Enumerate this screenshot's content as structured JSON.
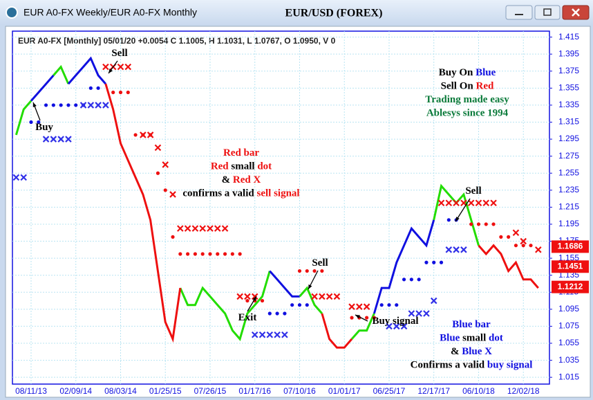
{
  "window_title": "EUR A0-FX Weekly/EUR A0-FX Monthly",
  "chart_data": {
    "type": "line",
    "title": "EUR/USD (FOREX)",
    "info": "EUR A0-FX [Monthly] 05/01/20 +0.0054 C 1.1005, H 1.1031, L 1.0767, O 1.0950, V 0",
    "categories": [
      null,
      null,
      "08/11/13",
      null,
      null,
      null,
      null,
      null,
      "02/09/14",
      null,
      null,
      null,
      null,
      null,
      "08/03/14",
      null,
      null,
      null,
      null,
      null,
      "01/25/15",
      null,
      null,
      null,
      null,
      null,
      "07/26/15",
      null,
      null,
      null,
      null,
      null,
      "01/17/16",
      null,
      null,
      null,
      null,
      null,
      "07/10/16",
      null,
      null,
      null,
      null,
      null,
      "01/01/17",
      null,
      null,
      null,
      null,
      null,
      "06/25/17",
      null,
      null,
      null,
      null,
      null,
      "12/17/17",
      null,
      null,
      null,
      null,
      null,
      "06/10/18",
      null,
      null,
      null,
      null,
      null,
      "12/02/18",
      null,
      null,
      null
    ],
    "series": [
      {
        "color": "#22dd00",
        "marker": "line",
        "values": [
          1.3,
          1.33,
          1.34,
          null,
          null,
          1.37,
          1.38,
          1.36,
          null,
          null,
          null,
          null,
          null,
          null,
          null,
          null,
          null,
          null,
          null,
          null,
          null,
          null,
          1.12,
          1.1,
          1.1,
          1.12,
          1.11,
          1.1,
          1.09,
          1.07,
          1.06,
          1.09,
          1.1,
          1.11,
          1.14,
          null,
          null,
          null,
          1.11,
          1.12,
          1.1,
          1.09,
          null,
          null,
          null,
          1.06,
          1.07,
          1.07,
          1.09,
          null,
          null,
          null,
          null,
          null,
          null,
          null,
          1.2,
          1.24,
          1.23,
          1.22,
          1.23,
          1.2,
          1.17,
          null,
          null,
          null,
          null,
          null,
          null,
          null,
          null,
          null
        ]
      },
      {
        "color": "#1010e0",
        "marker": "line",
        "values": [
          null,
          null,
          1.34,
          1.35,
          1.36,
          1.37,
          null,
          1.36,
          1.37,
          1.38,
          1.39,
          1.37,
          1.36,
          null,
          null,
          null,
          null,
          null,
          null,
          null,
          null,
          null,
          null,
          null,
          null,
          null,
          null,
          null,
          null,
          null,
          null,
          null,
          null,
          null,
          1.14,
          1.13,
          1.12,
          1.11,
          1.11,
          null,
          null,
          null,
          null,
          null,
          null,
          null,
          null,
          null,
          1.09,
          1.12,
          1.12,
          1.15,
          1.17,
          1.19,
          1.18,
          1.17,
          1.2,
          null,
          null,
          null,
          null,
          null,
          null,
          null,
          null,
          null,
          null,
          null,
          null,
          null,
          null,
          null
        ]
      },
      {
        "color": "#ee1010",
        "marker": "line",
        "values": [
          null,
          null,
          null,
          null,
          null,
          null,
          null,
          null,
          null,
          null,
          null,
          null,
          1.36,
          1.33,
          1.29,
          1.27,
          1.25,
          1.23,
          1.2,
          1.14,
          1.08,
          1.06,
          1.12,
          null,
          null,
          null,
          null,
          null,
          null,
          null,
          null,
          null,
          null,
          null,
          null,
          null,
          null,
          null,
          null,
          null,
          null,
          1.09,
          1.06,
          1.05,
          1.05,
          1.06,
          null,
          null,
          null,
          null,
          null,
          null,
          null,
          null,
          null,
          null,
          null,
          null,
          null,
          null,
          null,
          null,
          1.17,
          1.16,
          1.17,
          1.16,
          1.14,
          1.15,
          1.13,
          1.13,
          1.12,
          null
        ]
      },
      {
        "color": "#1010e0",
        "marker": "dot",
        "values": [
          null,
          null,
          1.315,
          1.315,
          1.335,
          1.335,
          1.335,
          1.335,
          1.335,
          1.335,
          1.355,
          1.355,
          null,
          null,
          null,
          null,
          null,
          null,
          null,
          null,
          null,
          null,
          null,
          null,
          null,
          null,
          null,
          null,
          null,
          null,
          null,
          null,
          null,
          null,
          1.09,
          1.09,
          1.09,
          1.1,
          1.1,
          1.1,
          null,
          null,
          null,
          null,
          null,
          null,
          null,
          null,
          null,
          1.1,
          1.1,
          1.1,
          1.13,
          1.13,
          1.13,
          1.15,
          1.15,
          1.15,
          1.2,
          1.2,
          null,
          null,
          null,
          null,
          null,
          null,
          null,
          null,
          null,
          null,
          null,
          null
        ]
      },
      {
        "color": "#ee1010",
        "marker": "dot",
        "values": [
          null,
          null,
          null,
          null,
          null,
          null,
          null,
          null,
          null,
          null,
          null,
          null,
          null,
          1.35,
          1.35,
          1.35,
          1.3,
          1.3,
          1.3,
          1.255,
          1.235,
          1.18,
          1.16,
          1.16,
          1.16,
          1.16,
          1.16,
          1.16,
          1.16,
          1.16,
          1.16,
          1.105,
          1.105,
          1.105,
          null,
          null,
          null,
          null,
          1.14,
          1.14,
          1.14,
          1.14,
          null,
          null,
          null,
          1.085,
          1.085,
          1.085,
          1.085,
          null,
          null,
          null,
          null,
          null,
          null,
          null,
          null,
          null,
          null,
          null,
          null,
          1.195,
          1.195,
          1.195,
          1.195,
          1.18,
          1.18,
          1.17,
          1.17,
          1.17,
          null,
          null
        ]
      },
      {
        "color": "#3030e8",
        "marker": "x",
        "values": [
          1.25,
          1.25,
          null,
          null,
          1.295,
          1.295,
          1.295,
          1.295,
          null,
          1.335,
          1.335,
          1.335,
          1.335,
          null,
          null,
          null,
          null,
          null,
          null,
          null,
          null,
          null,
          null,
          null,
          null,
          null,
          null,
          null,
          null,
          null,
          null,
          null,
          1.065,
          1.065,
          1.065,
          1.065,
          1.065,
          null,
          null,
          null,
          null,
          null,
          null,
          null,
          null,
          null,
          null,
          null,
          null,
          null,
          1.075,
          1.075,
          1.075,
          1.09,
          1.09,
          1.09,
          1.105,
          null,
          1.165,
          1.165,
          1.165,
          null,
          null,
          null,
          null,
          null,
          null,
          null,
          null,
          null,
          null,
          null
        ]
      },
      {
        "color": "#ee1010",
        "marker": "x",
        "values": [
          null,
          null,
          null,
          null,
          null,
          null,
          null,
          null,
          null,
          null,
          null,
          null,
          1.38,
          1.38,
          1.38,
          1.38,
          null,
          1.3,
          1.3,
          1.285,
          1.265,
          1.23,
          1.19,
          1.19,
          1.19,
          1.19,
          1.19,
          1.19,
          1.19,
          null,
          1.11,
          1.11,
          1.11,
          null,
          null,
          null,
          null,
          null,
          null,
          null,
          1.11,
          1.11,
          1.11,
          1.11,
          null,
          1.098,
          1.098,
          1.098,
          null,
          null,
          null,
          null,
          null,
          null,
          null,
          null,
          null,
          1.22,
          1.22,
          1.22,
          1.22,
          1.22,
          1.22,
          1.22,
          1.22,
          null,
          null,
          1.185,
          1.175,
          null,
          1.165,
          null
        ]
      }
    ],
    "ylim": [
      1.007,
      1.422
    ],
    "yticks": [
      1.415,
      1.395,
      1.375,
      1.355,
      1.335,
      1.315,
      1.295,
      1.275,
      1.255,
      1.235,
      1.215,
      1.195,
      1.175,
      1.155,
      1.135,
      1.115,
      1.095,
      1.075,
      1.055,
      1.035,
      1.015
    ],
    "grid": true,
    "price_labels": [
      1.1686,
      1.1451,
      1.1212
    ],
    "price_label_color": "#ee1010",
    "annotations": [
      {
        "lines": [
          [
            {
              "text": "Buy On ",
              "color": "#000000"
            },
            {
              "text": "Blue",
              "color": "#1010e0"
            }
          ],
          [
            {
              "text": "Sell On ",
              "color": "#000000"
            },
            {
              "text": "Red",
              "color": "#ee1010"
            }
          ],
          [
            {
              "text": "Trading made easy",
              "color": "#0a7a3a"
            }
          ],
          [
            {
              "text": "Ablesys since 1994",
              "color": "#0a7a3a"
            }
          ]
        ]
      },
      {
        "lines": [
          [
            {
              "text": "Sell",
              "color": "#000000"
            }
          ]
        ]
      },
      {
        "lines": [
          [
            {
              "text": "Buy",
              "color": "#000000"
            }
          ]
        ]
      },
      {
        "lines": [
          [
            {
              "text": "Red bar",
              "color": "#ee1010"
            }
          ],
          [
            {
              "text": "Red",
              "color": "#ee1010"
            },
            {
              "text": " small ",
              "color": "#000000"
            },
            {
              "text": "dot",
              "color": "#ee1010"
            }
          ],
          [
            {
              "text": "& ",
              "color": "#000000"
            },
            {
              "text": "Red X",
              "color": "#ee1010"
            }
          ],
          [
            {
              "text": "confirms a valid ",
              "color": "#000000"
            },
            {
              "text": "sell signal",
              "color": "#ee1010"
            }
          ]
        ]
      },
      {
        "lines": [
          [
            {
              "text": "Exit",
              "color": "#000000"
            }
          ]
        ]
      },
      {
        "lines": [
          [
            {
              "text": "Sell",
              "color": "#000000"
            }
          ]
        ]
      },
      {
        "lines": [
          [
            {
              "text": "Buy signal",
              "color": "#000000"
            }
          ]
        ]
      },
      {
        "lines": [
          [
            {
              "text": "Sell",
              "color": "#000000"
            }
          ]
        ]
      },
      {
        "lines": [
          [
            {
              "text": "Blue bar",
              "color": "#1010e0"
            }
          ],
          [
            {
              "text": "Blue",
              "color": "#1010e0"
            },
            {
              "text": " small ",
              "color": "#000000"
            },
            {
              "text": "dot",
              "color": "#1010e0"
            }
          ],
          [
            {
              "text": "& ",
              "color": "#000000"
            },
            {
              "text": "Blue X",
              "color": "#1010e0"
            }
          ],
          [
            {
              "text": "Confirms a valid ",
              "color": "#000000"
            },
            {
              "text": "buy signal",
              "color": "#1010e0"
            }
          ]
        ]
      }
    ]
  }
}
